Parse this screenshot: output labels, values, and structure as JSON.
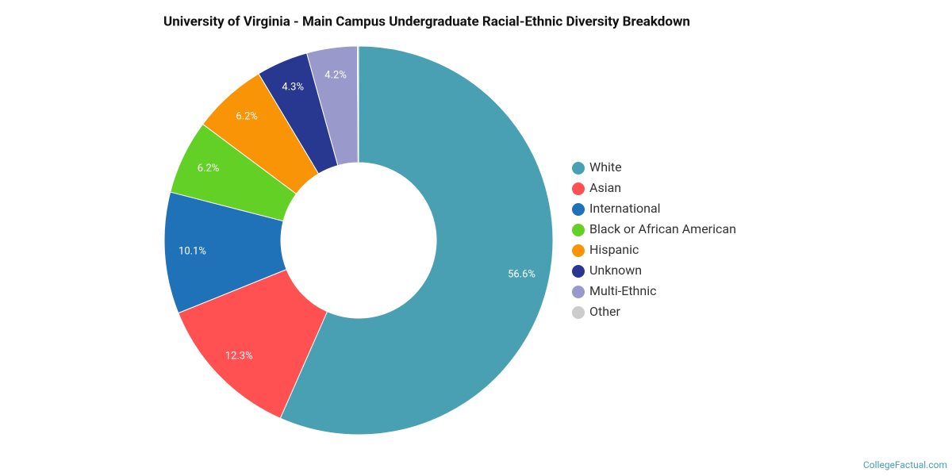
{
  "chart_data": {
    "type": "donut",
    "title": "University of Virginia - Main Campus Undergraduate Racial-Ethnic Diversity Breakdown",
    "categories": [
      "White",
      "Asian",
      "International",
      "Black or African American",
      "Hispanic",
      "Unknown",
      "Multi-Ethnic",
      "Other"
    ],
    "values": [
      56.6,
      12.3,
      10.1,
      6.2,
      6.2,
      4.3,
      4.2,
      0.1
    ],
    "value_labels": [
      "56.6%",
      "12.3%",
      "10.1%",
      "6.2%",
      "6.2%",
      "4.3%",
      "4.2%",
      null
    ],
    "colors": [
      "#4aa0b3",
      "#ff5152",
      "#1f72b8",
      "#63d026",
      "#f99406",
      "#283891",
      "#9a99cb",
      "#cccccc"
    ],
    "legend": "right",
    "credit": "CollegeFactual.com"
  }
}
